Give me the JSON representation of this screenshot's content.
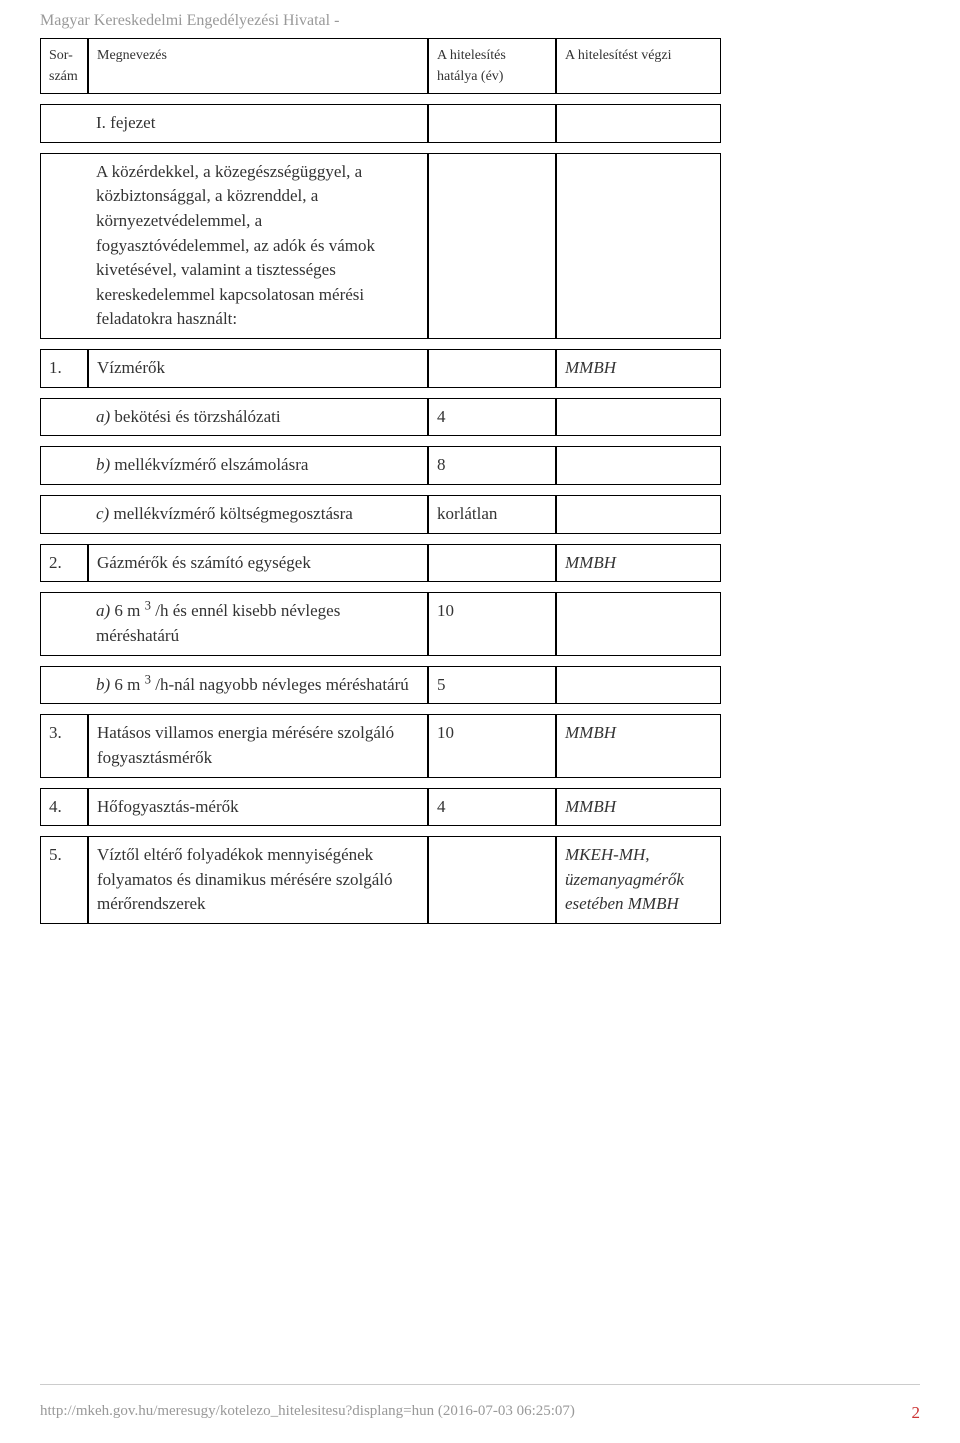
{
  "header": {
    "title": "Magyar Kereskedelmi Engedélyezési Hivatal -"
  },
  "table": {
    "columns": {
      "sor": "Sor-szám",
      "name": "Megnevezés",
      "validity": "A hitelesítés hatálya (év)",
      "performer": "A hitelesítést végzi"
    }
  },
  "rows": {
    "chapter": {
      "label": "I. fejezet"
    },
    "intro": {
      "text": "A közérdekkel, a közegészségüggyel, a közbiztonsággal, a közrenddel, a környezetvédelemmel, a fogyasztóvédelemmel, az adók és vámok kivetésével, valamint a tisztességes kereskedelemmel kapcsolatosan mérési feladatokra használt:"
    },
    "r1": {
      "no": "1.",
      "name": "Vízmérők",
      "performer": "MMBH"
    },
    "r1a": {
      "label_i": "a)",
      "label_t": "   bekötési és törzshálózati",
      "val": "4"
    },
    "r1b": {
      "label_i": "b)",
      "label_t": "   mellékvízmérő elszámolásra",
      "val": "8"
    },
    "r1c": {
      "label_i": "c)",
      "label_t": "   mellékvízmérő költségmegosztásra",
      "val": "korlátlan"
    },
    "r2": {
      "no": "2.",
      "name": "Gázmérők és számító egységek",
      "performer": "MMBH"
    },
    "r2a": {
      "label_i": "a)",
      "pre": "   6 m ",
      "sup": "3",
      "post": " /h és ennél kisebb névleges méréshatárú",
      "val": "10"
    },
    "r2b": {
      "label_i": "b)",
      "pre": "   6 m ",
      "sup": "3",
      "post": " /h-nál nagyobb névleges méréshatárú",
      "val": "5"
    },
    "r3": {
      "no": "3.",
      "name": "Hatásos villamos energia mérésére szolgáló fogyasztásmérők",
      "val": "10",
      "performer": "MMBH"
    },
    "r4": {
      "no": "4.",
      "name": "Hőfogyasztás-mérők",
      "val": "4",
      "performer": "MMBH"
    },
    "r5": {
      "no": "5.",
      "name": "Víztől eltérő folyadékok mennyiségének folyamatos és dinamikus mérésére szolgáló mérőrendszerek",
      "performer": "MKEH-MH, üzemanyagmérők esetében MMBH"
    }
  },
  "footer": {
    "url": "http://mkeh.gov.hu/meresugy/kotelezo_hitelesitesu?displang=hun (2016-07-03 06:25:07)",
    "page": "2"
  }
}
